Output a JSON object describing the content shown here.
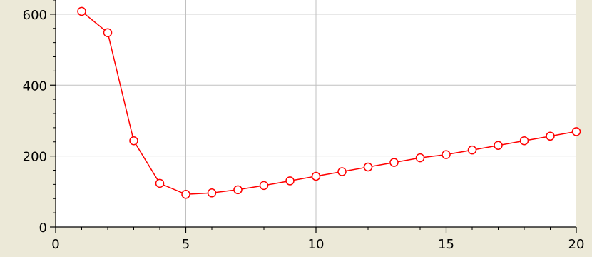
{
  "chart_data": {
    "type": "line",
    "title": "",
    "xlabel": "",
    "ylabel": "",
    "xlim": [
      0,
      20
    ],
    "ylim": [
      0,
      640
    ],
    "x_ticks": [
      "0",
      "5",
      "10",
      "15",
      "20"
    ],
    "y_ticks": [
      "0",
      "200",
      "400",
      "600"
    ],
    "grid": true,
    "colors": {
      "plot_background": "#ffffff",
      "page_background": "#ece9d8",
      "series": "#ff0000",
      "grid": "#c0c0c0"
    },
    "series": [
      {
        "x": [
          1,
          2,
          3,
          4,
          5,
          6,
          7,
          8,
          9,
          10,
          11,
          12,
          13,
          14,
          15,
          16,
          17,
          18,
          19,
          20
        ],
        "values": [
          608,
          548,
          243,
          123,
          92,
          96,
          105,
          117,
          130,
          143,
          156,
          169,
          182,
          195,
          204,
          217,
          230,
          243,
          256,
          269
        ]
      }
    ]
  }
}
